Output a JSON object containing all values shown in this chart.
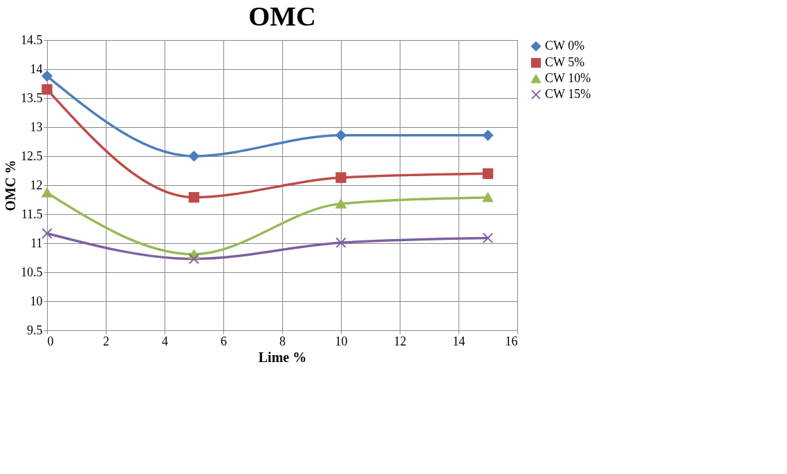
{
  "chart_data": {
    "type": "line",
    "title": "OMC",
    "xlabel": "Lime %",
    "ylabel": "OMC %",
    "x": [
      0,
      5,
      10,
      15
    ],
    "series": [
      {
        "name": "CW 0%",
        "color": "#4a7ebb",
        "marker": "diamond",
        "values": [
          13.88,
          12.5,
          12.86,
          12.86
        ]
      },
      {
        "name": "CW 5%",
        "color": "#be4b48",
        "marker": "square",
        "values": [
          13.65,
          11.79,
          12.13,
          12.2
        ]
      },
      {
        "name": "CW 10%",
        "color": "#98b954",
        "marker": "triangle",
        "values": [
          11.87,
          10.81,
          11.68,
          11.79
        ]
      },
      {
        "name": "CW 15%",
        "color": "#7d60a0",
        "marker": "cross",
        "values": [
          11.17,
          10.73,
          11.01,
          11.09
        ]
      }
    ],
    "xlim": [
      0,
      16
    ],
    "xticks": [
      0,
      2,
      4,
      6,
      8,
      10,
      12,
      14,
      16
    ],
    "ylim": [
      9.5,
      14.5
    ],
    "yticks": [
      9.5,
      10,
      10.5,
      11,
      11.5,
      12,
      12.5,
      13,
      13.5,
      14,
      14.5
    ],
    "grid": true,
    "legend": "right",
    "line_style": "solid"
  }
}
